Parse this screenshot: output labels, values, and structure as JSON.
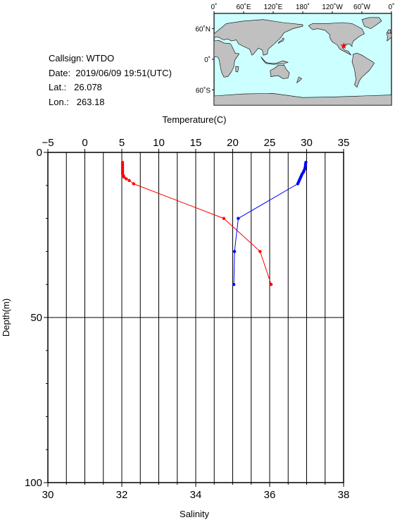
{
  "station": {
    "callsign_label": "Callsign:",
    "callsign": "WTDO",
    "date_label": "Date:",
    "date": "2019/06/09 19:51(UTC)",
    "lat_label": "Lat.:",
    "lat": "26.078",
    "lon_label": "Lon.:",
    "lon": "263.18"
  },
  "map": {
    "lon_ticks": [
      "0˚",
      "60˚E",
      "120˚E",
      "180˚",
      "120˚W",
      "60˚W",
      "0˚"
    ],
    "lat_ticks": [
      "60˚N",
      "0˚",
      "60˚S"
    ],
    "marker": {
      "lon": 263.18,
      "lat": 26.078
    },
    "colors": {
      "ocean": "#ccffff",
      "land": "#c0c0c0",
      "marker": "#ff0000"
    }
  },
  "chart_data": {
    "type": "line",
    "title": "",
    "top_axis": {
      "label": "Temperature(C)",
      "range": [
        -5,
        35
      ],
      "ticks": [
        "−5",
        "0",
        "5",
        "10",
        "15",
        "20",
        "25",
        "30",
        "35"
      ],
      "tick_values": [
        -5,
        0,
        5,
        10,
        15,
        20,
        25,
        30,
        35
      ]
    },
    "bottom_axis": {
      "label": "Salinity",
      "range": [
        30,
        38
      ],
      "ticks": [
        "30",
        "32",
        "34",
        "36",
        "38"
      ],
      "tick_values": [
        30,
        32,
        34,
        36,
        38
      ]
    },
    "y_axis": {
      "label": "Depth(m)",
      "range": [
        0,
        100
      ],
      "reversed": true,
      "ticks": [
        "0",
        "50",
        "100"
      ],
      "tick_values": [
        0,
        50,
        100
      ]
    },
    "grid": true,
    "series": [
      {
        "axis": "top",
        "color": "#ff0000",
        "points": [
          {
            "x": 5.1,
            "depth": 3
          },
          {
            "x": 5.1,
            "depth": 3.5
          },
          {
            "x": 5.1,
            "depth": 4
          },
          {
            "x": 5.1,
            "depth": 4.5
          },
          {
            "x": 5.1,
            "depth": 5
          },
          {
            "x": 5.1,
            "depth": 5.5
          },
          {
            "x": 5.1,
            "depth": 6
          },
          {
            "x": 5.1,
            "depth": 6.5
          },
          {
            "x": 5.2,
            "depth": 7
          },
          {
            "x": 5.3,
            "depth": 7.5
          },
          {
            "x": 5.6,
            "depth": 8
          },
          {
            "x": 6.0,
            "depth": 8.5
          },
          {
            "x": 6.6,
            "depth": 9.5
          },
          {
            "x": 18.8,
            "depth": 20
          },
          {
            "x": 23.7,
            "depth": 30
          },
          {
            "x": 25.2,
            "depth": 40
          }
        ]
      },
      {
        "axis": "bottom",
        "color": "#0000ff",
        "points": [
          {
            "x": 36.98,
            "depth": 3
          },
          {
            "x": 36.97,
            "depth": 3.5
          },
          {
            "x": 36.97,
            "depth": 4
          },
          {
            "x": 36.96,
            "depth": 4.5
          },
          {
            "x": 36.95,
            "depth": 5
          },
          {
            "x": 36.93,
            "depth": 5.5
          },
          {
            "x": 36.91,
            "depth": 6
          },
          {
            "x": 36.88,
            "depth": 6.5
          },
          {
            "x": 36.86,
            "depth": 7
          },
          {
            "x": 36.84,
            "depth": 7.5
          },
          {
            "x": 36.82,
            "depth": 8
          },
          {
            "x": 36.8,
            "depth": 8.5
          },
          {
            "x": 36.78,
            "depth": 9
          },
          {
            "x": 36.76,
            "depth": 9.5
          },
          {
            "x": 35.15,
            "depth": 20
          },
          {
            "x": 35.05,
            "depth": 30
          },
          {
            "x": 35.03,
            "depth": 40
          }
        ]
      }
    ]
  }
}
